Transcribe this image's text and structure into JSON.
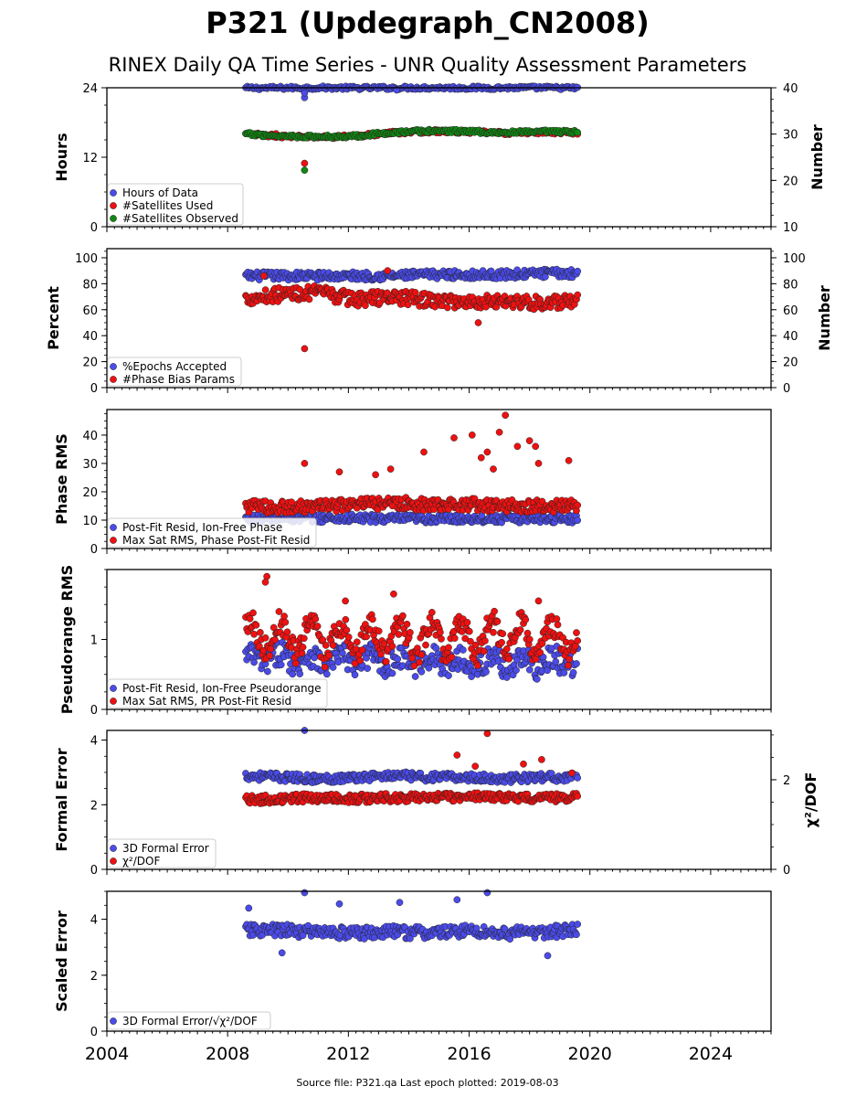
{
  "header": {
    "title": "P321 (Updegraph_CN2008)",
    "subtitle": "RINEX Daily QA Time Series - UNR Quality Assessment Parameters"
  },
  "footer": "Source file: P321.qa Last epoch plotted: 2019-08-03",
  "colors": {
    "blue": "#4b4bea",
    "red": "#ee1111",
    "green": "#118811",
    "edge": "#222222"
  },
  "x_axis": {
    "ticks": [
      2004,
      2008,
      2012,
      2016,
      2020,
      2024
    ],
    "range": [
      2004,
      2026.0
    ],
    "data_span": [
      2008.6,
      2019.59
    ]
  },
  "chart_data": [
    {
      "type": "scatter",
      "ylabel_left": "Hours",
      "ylabel_right": "Number",
      "ylim_left": [
        0,
        24
      ],
      "ylim_right": [
        10,
        40
      ],
      "yticks_left": [
        0,
        12,
        24
      ],
      "yticks_right": [
        10,
        20,
        30,
        40
      ],
      "series": [
        {
          "name": "Hours of Data",
          "axis": "left",
          "color": "blue",
          "values": [
            23.95,
            23.98,
            24.0,
            23.97,
            23.99,
            24.0,
            23.98,
            23.99,
            24.0,
            23.96
          ],
          "outliers": [
            [
              2010.55,
              22.3
            ],
            [
              2010.55,
              23.1
            ],
            [
              2013.6,
              23.6
            ]
          ]
        },
        {
          "name": "#Satellites Used",
          "axis": "right",
          "color": "red",
          "values": [
            30,
            29.5,
            29.3,
            29.6,
            30.3,
            30.6,
            30.5,
            30.2,
            30.4,
            30.3
          ],
          "outliers": [
            [
              2010.55,
              23.7
            ],
            [
              2009.6,
              30.1
            ]
          ]
        },
        {
          "name": "#Satellites Observed",
          "axis": "right",
          "color": "green",
          "values": [
            30,
            29.6,
            29.4,
            29.6,
            30.4,
            30.7,
            30.6,
            30.3,
            30.5,
            30.4
          ],
          "outliers": [
            [
              2010.55,
              22.2
            ]
          ]
        }
      ],
      "legend_loc": "lower left"
    },
    {
      "type": "scatter",
      "ylabel_left": "Percent",
      "ylabel_right": "Number",
      "ylim_left": [
        0,
        107
      ],
      "ylim_right": [
        0,
        107
      ],
      "yticks_left": [
        0,
        20,
        40,
        60,
        80,
        100
      ],
      "yticks_right": [
        0,
        20,
        40,
        60,
        80,
        100
      ],
      "series": [
        {
          "name": "%Epochs Accepted",
          "axis": "left",
          "color": "blue",
          "values": [
            86,
            86,
            86,
            86,
            86,
            87,
            87,
            87,
            88,
            88
          ],
          "outliers": []
        },
        {
          "name": "#Phase Bias Params",
          "axis": "right",
          "color": "red",
          "values": [
            69,
            72,
            73,
            68,
            70,
            67,
            66,
            67,
            65,
            66
          ],
          "outliers": [
            [
              2010.55,
              30
            ],
            [
              2016.3,
              50
            ],
            [
              2013.3,
              90
            ],
            [
              2009.2,
              86
            ]
          ]
        }
      ],
      "legend_loc": "lower left"
    },
    {
      "type": "scatter",
      "ylabel_left": "Phase RMS",
      "ylim_left": [
        0,
        49
      ],
      "yticks_left": [
        0,
        10,
        20,
        30,
        40
      ],
      "series": [
        {
          "name": "Post-Fit Resid, Ion-Free Phase",
          "axis": "left",
          "color": "blue",
          "values": [
            10.5,
            10.6,
            10.7,
            10.6,
            10.5,
            10.4,
            10.5,
            10.5,
            10.6,
            10.5
          ],
          "outliers": []
        },
        {
          "name": "Max Sat RMS, Phase Post-Fit Resid",
          "axis": "left",
          "color": "red",
          "values": [
            15,
            14.5,
            15,
            15.5,
            16,
            15.5,
            15.5,
            15,
            15,
            15
          ],
          "outliers": [
            [
              2010.55,
              30
            ],
            [
              2011.7,
              27
            ],
            [
              2012.9,
              26
            ],
            [
              2013.4,
              28
            ],
            [
              2014.5,
              34
            ],
            [
              2015.5,
              39
            ],
            [
              2016.1,
              40
            ],
            [
              2016.4,
              32
            ],
            [
              2016.6,
              34
            ],
            [
              2016.8,
              28
            ],
            [
              2017.0,
              41
            ],
            [
              2017.2,
              47
            ],
            [
              2017.6,
              36
            ],
            [
              2018.0,
              38
            ],
            [
              2018.3,
              30
            ],
            [
              2018.2,
              36
            ],
            [
              2019.3,
              31
            ]
          ]
        }
      ],
      "legend_loc": "lower left"
    },
    {
      "type": "scatter",
      "ylabel_left": "Pseudorange RMS",
      "ylim_left": [
        0,
        2.0
      ],
      "yticks_left": [
        0,
        1
      ],
      "series": [
        {
          "name": "Post-Fit Resid, Ion-Free Pseudorange",
          "axis": "left",
          "color": "blue",
          "values": [
            0.7,
            0.75,
            0.7,
            0.72,
            0.7,
            0.7,
            0.68,
            0.68,
            0.67,
            0.7
          ],
          "outliers": []
        },
        {
          "name": "Max Sat RMS, PR Post-Fit Resid",
          "axis": "left",
          "color": "red",
          "values": [
            1.1,
            1.05,
            1.0,
            1.0,
            1.0,
            1.0,
            1.0,
            1.05,
            1.0,
            1.0
          ],
          "outliers": [
            [
              2009.3,
              1.9
            ],
            [
              2009.25,
              1.82
            ],
            [
              2013.5,
              1.65
            ],
            [
              2011.9,
              1.55
            ],
            [
              2018.3,
              1.55
            ]
          ]
        }
      ],
      "legend_loc": "lower left"
    },
    {
      "type": "scatter",
      "ylabel_left": "Formal Error",
      "ylabel_right": "χ²/DOF",
      "ylim_left": [
        0,
        4.3
      ],
      "ylim_right": [
        0,
        3.1
      ],
      "yticks_left": [
        0,
        2,
        4
      ],
      "yticks_right": [
        0,
        2
      ],
      "series": [
        {
          "name": "3D Formal Error",
          "axis": "left",
          "color": "blue",
          "values": [
            2.9,
            2.85,
            2.8,
            2.85,
            2.9,
            2.85,
            2.85,
            2.8,
            2.85,
            2.85
          ],
          "outliers": [
            [
              2010.55,
              4.3
            ]
          ]
        },
        {
          "name": "χ²/DOF",
          "axis": "right",
          "color": "red",
          "values": [
            1.55,
            1.58,
            1.6,
            1.58,
            1.6,
            1.6,
            1.62,
            1.6,
            1.6,
            1.6
          ],
          "outliers": [
            [
              2016.6,
              3.03
            ],
            [
              2015.6,
              2.55
            ],
            [
              2016.2,
              2.3
            ],
            [
              2018.4,
              2.45
            ],
            [
              2017.8,
              2.35
            ],
            [
              2019.4,
              2.15
            ]
          ]
        }
      ],
      "legend_loc": "lower left"
    },
    {
      "type": "scatter",
      "ylabel_left": "Scaled Error",
      "ylim_left": [
        0,
        5.0
      ],
      "yticks_left": [
        0,
        2,
        4
      ],
      "series": [
        {
          "name": "3D Formal Error/√χ²/DOF",
          "axis": "left",
          "color": "blue",
          "values": [
            3.6,
            3.6,
            3.55,
            3.5,
            3.55,
            3.5,
            3.6,
            3.5,
            3.55,
            3.6
          ],
          "outliers": [
            [
              2010.55,
              4.95
            ],
            [
              2016.6,
              4.95
            ],
            [
              2015.6,
              4.7
            ],
            [
              2013.7,
              4.6
            ],
            [
              2008.7,
              4.4
            ],
            [
              2011.7,
              4.55
            ],
            [
              2009.8,
              2.8
            ],
            [
              2018.6,
              2.7
            ]
          ]
        }
      ],
      "legend_loc": "lower left"
    }
  ]
}
